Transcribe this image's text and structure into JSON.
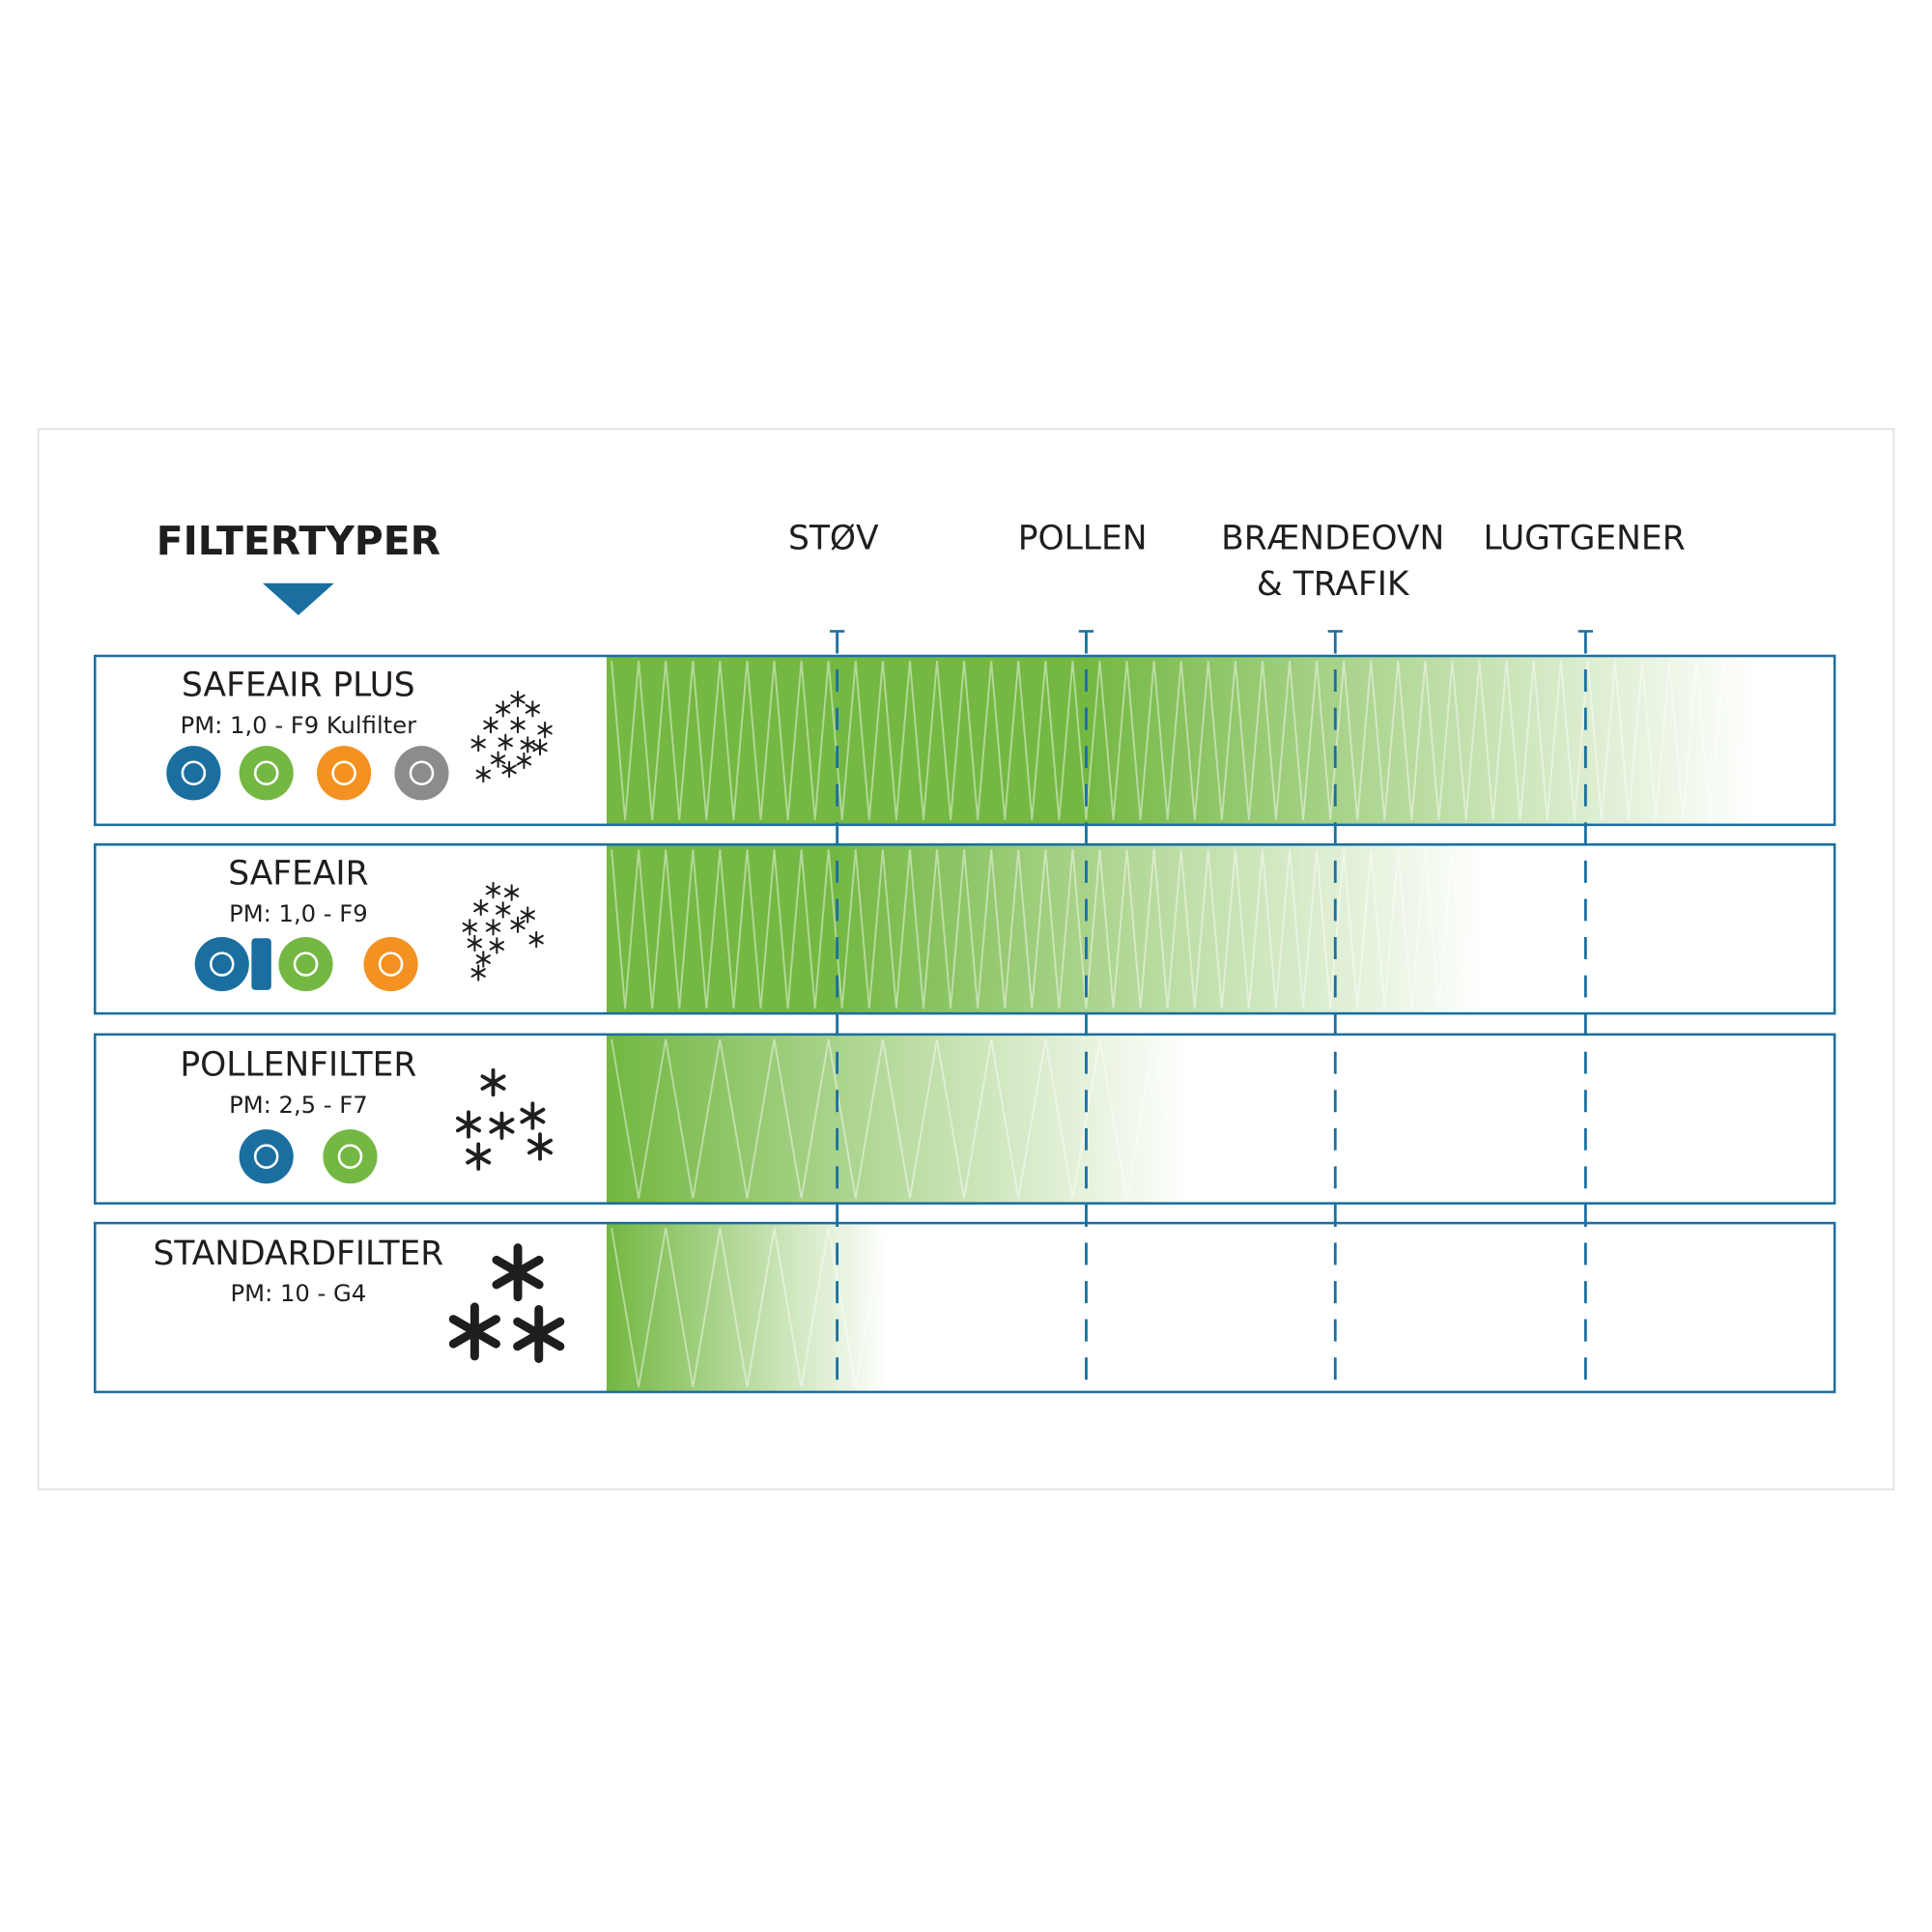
{
  "header": {
    "title": "FILTERTYPER"
  },
  "columns": [
    {
      "lines": [
        "STØV"
      ]
    },
    {
      "lines": [
        "POLLEN"
      ]
    },
    {
      "lines": [
        "BRÆNDEOVN",
        "& TRAFIK"
      ]
    },
    {
      "lines": [
        "LUGTGENER"
      ]
    }
  ],
  "rows": [
    {
      "name": "SAFEAIR PLUS",
      "spec": "PM: 1,0 - F9 Kulfilter"
    },
    {
      "name": "SAFEAIR",
      "spec": "PM: 1,0 - F9"
    },
    {
      "name": "POLLENFILTER",
      "spec": "PM: 2,5 - F7"
    },
    {
      "name": "STANDARDFILTER",
      "spec": "PM: 10 - G4"
    }
  ]
}
